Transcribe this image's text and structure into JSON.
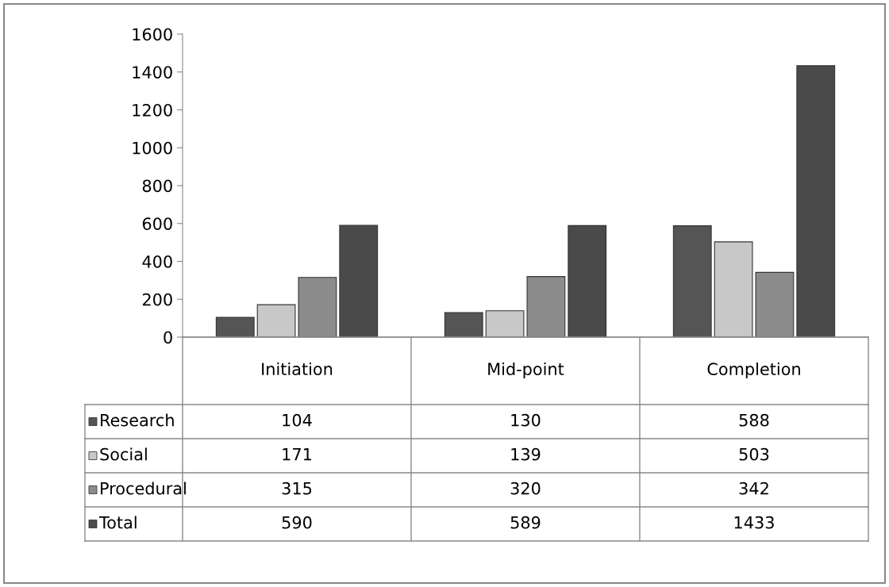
{
  "chart_data": {
    "type": "bar",
    "categories": [
      "Initiation",
      "Mid-point",
      "Completion"
    ],
    "series": [
      {
        "name": "Research",
        "color": "#555555",
        "values": [
          104,
          130,
          588
        ]
      },
      {
        "name": "Social",
        "color": "#c8c8c8",
        "values": [
          171,
          139,
          503
        ]
      },
      {
        "name": "Procedural",
        "color": "#8c8c8c",
        "values": [
          315,
          320,
          342
        ]
      },
      {
        "name": "Total",
        "color": "#4a4a4a",
        "values": [
          590,
          589,
          1433
        ]
      }
    ],
    "ylim": [
      0,
      1600
    ],
    "yticks": [
      0,
      200,
      400,
      600,
      800,
      1000,
      1200,
      1400,
      1600
    ],
    "grid": false,
    "legend": "bottom",
    "data_labels": true
  }
}
